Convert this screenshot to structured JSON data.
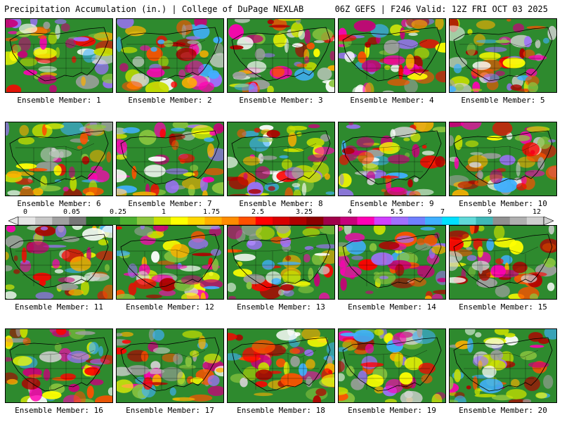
{
  "header": {
    "title_left": "Precipitation Accumulation (in.) | College of DuPage NEXLAB",
    "title_right": "06Z GEFS | F246 Valid: 12Z FRI OCT 03 2025"
  },
  "members": [
    "Ensemble Member: 1",
    "Ensemble Member: 2",
    "Ensemble Member: 3",
    "Ensemble Member: 4",
    "Ensemble Member: 5",
    "Ensemble Member: 6",
    "Ensemble Member: 7",
    "Ensemble Member: 8",
    "Ensemble Member: 9",
    "Ensemble Member: 10",
    "Ensemble Member: 11",
    "Ensemble Member: 12",
    "Ensemble Member: 13",
    "Ensemble Member: 14",
    "Ensemble Member: 15",
    "Ensemble Member: 16",
    "Ensemble Member: 17",
    "Ensemble Member: 18",
    "Ensemble Member: 19",
    "Ensemble Member: 20"
  ],
  "colorbar": {
    "labels": [
      "0",
      "0.05",
      "0.25",
      "1",
      "1.75",
      "2.5",
      "3.25",
      "4",
      "5.5",
      "7",
      "9",
      "12"
    ],
    "colors": [
      "#e6e6e6",
      "#c8c8c8",
      "#a0a0a0",
      "#787878",
      "#1f6e1f",
      "#2e8a2e",
      "#4caf30",
      "#8cc63f",
      "#c8e000",
      "#ffff00",
      "#ffd700",
      "#ffb000",
      "#ff8c00",
      "#ff5000",
      "#ff0000",
      "#d80000",
      "#b00000",
      "#8b0000",
      "#a0004a",
      "#c8007a",
      "#ff00b4",
      "#d040ff",
      "#a070ff",
      "#7080ff",
      "#40b0ff",
      "#00e0ff",
      "#60d8d8",
      "#40b8b8",
      "#909090",
      "#b0b0b0",
      "#d0d0d0"
    ]
  }
}
